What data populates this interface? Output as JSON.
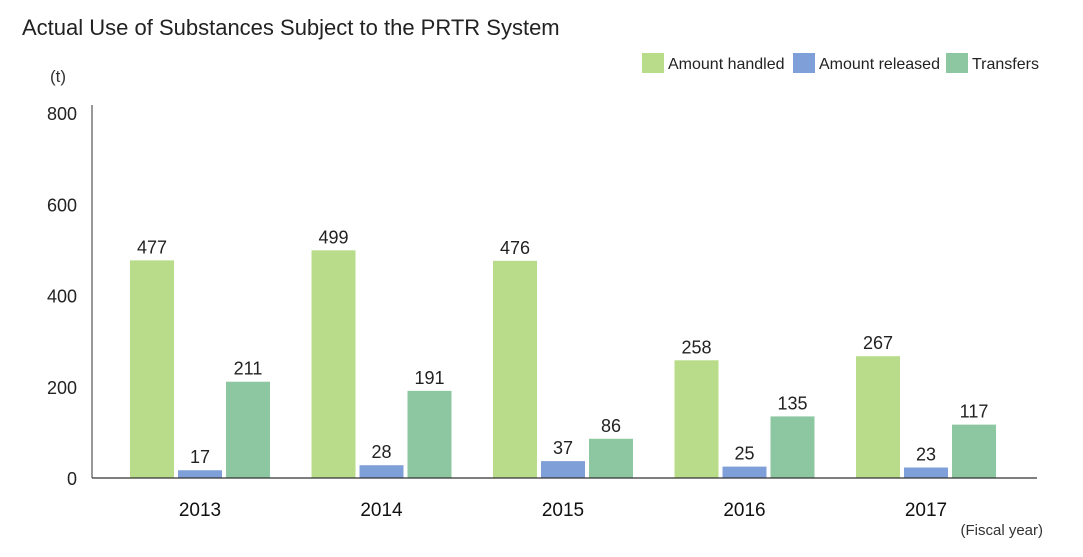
{
  "chart_data": {
    "type": "bar",
    "title": "Actual Use of Substances Subject to the PRTR System",
    "ylabel": "(t)",
    "xlabel": "(Fiscal year)",
    "ylim": [
      0,
      800
    ],
    "yticks": [
      0,
      200,
      400,
      600,
      800
    ],
    "categories": [
      "2013",
      "2014",
      "2015",
      "2016",
      "2017"
    ],
    "legend_position": "top-right",
    "grid": false,
    "series": [
      {
        "name": "Amount handled",
        "color": "#b9dc8a",
        "values": [
          477,
          499,
          476,
          258,
          267
        ]
      },
      {
        "name": "Amount released",
        "color": "#7f9fd8",
        "values": [
          17,
          28,
          37,
          25,
          23
        ]
      },
      {
        "name": "Transfers",
        "color": "#8cc7a2",
        "values": [
          211,
          191,
          86,
          135,
          117
        ]
      }
    ]
  }
}
